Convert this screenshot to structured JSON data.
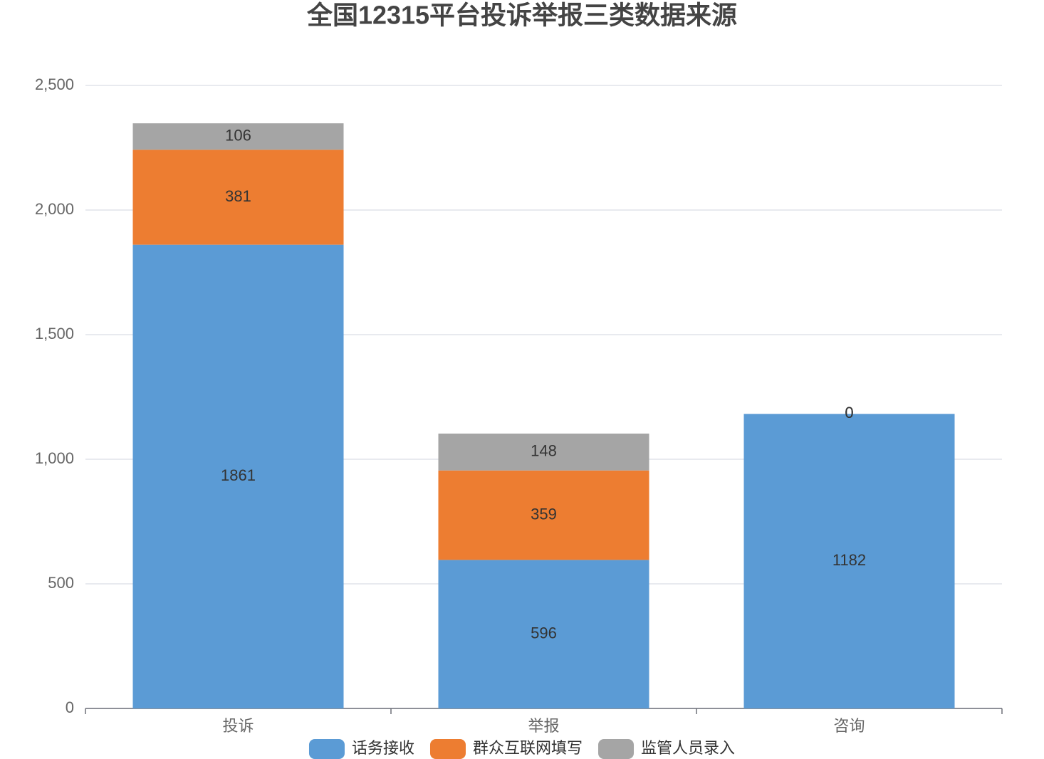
{
  "chart_data": {
    "type": "stacked_bar",
    "title": "全国12315平台投诉举报三类数据来源",
    "categories": [
      "投诉",
      "举报",
      "咨询"
    ],
    "series": [
      {
        "name": "话务接收",
        "color": "#5b9bd5",
        "values": [
          1861,
          596,
          1182
        ]
      },
      {
        "name": "群众互联网填写",
        "color": "#ed7d31",
        "values": [
          381,
          359,
          0
        ]
      },
      {
        "name": "监管人员录入",
        "color": "#a5a5a5",
        "values": [
          106,
          148,
          0
        ]
      }
    ],
    "ylim": [
      0,
      2500
    ],
    "yticks": [
      0,
      500,
      {
        "value": 1000,
        "label": "1,000"
      },
      {
        "value": 1500,
        "label": "1,500"
      },
      {
        "value": 2000,
        "label": "2,000"
      },
      {
        "value": 2500,
        "label": "2,500"
      }
    ],
    "grid": true,
    "legend": "bottom"
  }
}
